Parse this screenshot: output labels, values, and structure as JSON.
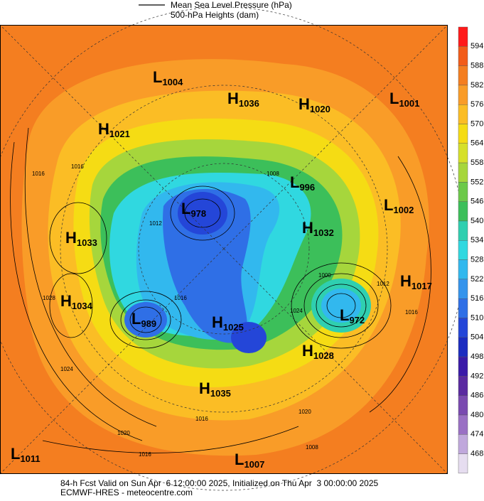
{
  "legend": {
    "line_label": "Mean Sea Level Pressure (hPa)",
    "fill_label": "500-hPa Heights (dam)"
  },
  "colorbar": [
    {
      "color": "#ff1a1a"
    },
    {
      "label": 594,
      "color": "#f25c19"
    },
    {
      "label": 588,
      "color": "#f47e20"
    },
    {
      "label": 582,
      "color": "#f99c28"
    },
    {
      "label": 576,
      "color": "#fbbd25"
    },
    {
      "label": 570,
      "color": "#f5dc14"
    },
    {
      "label": 564,
      "color": "#d6e02a"
    },
    {
      "label": 558,
      "color": "#a6d63c"
    },
    {
      "label": 552,
      "color": "#6cc94a"
    },
    {
      "label": 546,
      "color": "#3cbf5a"
    },
    {
      "label": 540,
      "color": "#2fcfb0"
    },
    {
      "label": 534,
      "color": "#30d8e0"
    },
    {
      "label": 528,
      "color": "#32b8ee"
    },
    {
      "label": 522,
      "color": "#3594ec"
    },
    {
      "label": 516,
      "color": "#2f6fe6"
    },
    {
      "label": 510,
      "color": "#2446d8"
    },
    {
      "label": 504,
      "color": "#1c2cc0"
    },
    {
      "label": 498,
      "color": "#3a1aa8"
    },
    {
      "label": 492,
      "color": "#5a2aa0"
    },
    {
      "label": 486,
      "color": "#7a4ab0"
    },
    {
      "label": 480,
      "color": "#9a70c4"
    },
    {
      "label": 474,
      "color": "#c0a8dc"
    },
    {
      "label": 468,
      "color": "#e6ddf0"
    }
  ],
  "centers": [
    {
      "kind": "L",
      "value": "1004"
    },
    {
      "kind": "H",
      "value": "1036"
    },
    {
      "kind": "H",
      "value": "1020"
    },
    {
      "kind": "L",
      "value": "1001"
    },
    {
      "kind": "H",
      "value": "1021"
    },
    {
      "kind": "L",
      "value": "996"
    },
    {
      "kind": "L",
      "value": "978"
    },
    {
      "kind": "L",
      "value": "1002"
    },
    {
      "kind": "H",
      "value": "1033"
    },
    {
      "kind": "H",
      "value": "1032"
    },
    {
      "kind": "H",
      "value": "1017"
    },
    {
      "kind": "H",
      "value": "1034"
    },
    {
      "kind": "L",
      "value": "989"
    },
    {
      "kind": "H",
      "value": "1025"
    },
    {
      "kind": "L",
      "value": "972"
    },
    {
      "kind": "H",
      "value": "1028"
    },
    {
      "kind": "H",
      "value": "1035"
    },
    {
      "kind": "L",
      "value": "1011"
    },
    {
      "kind": "L",
      "value": "1007"
    }
  ],
  "contour_labels": [
    "1016",
    "1016",
    "1024",
    "1028",
    "1020",
    "1016",
    "1016",
    "1012",
    "1016",
    "1008",
    "1024",
    "1012",
    "1000",
    "1020",
    "1008",
    "1016"
  ],
  "footer": {
    "line1": "84-h Fcst Valid on Sun Apr  6 12:00:00 2025, Initialized on Thu Apr  3 00:00:00 2025",
    "line2": "ECMWF-HRES - meteocentre.com"
  }
}
